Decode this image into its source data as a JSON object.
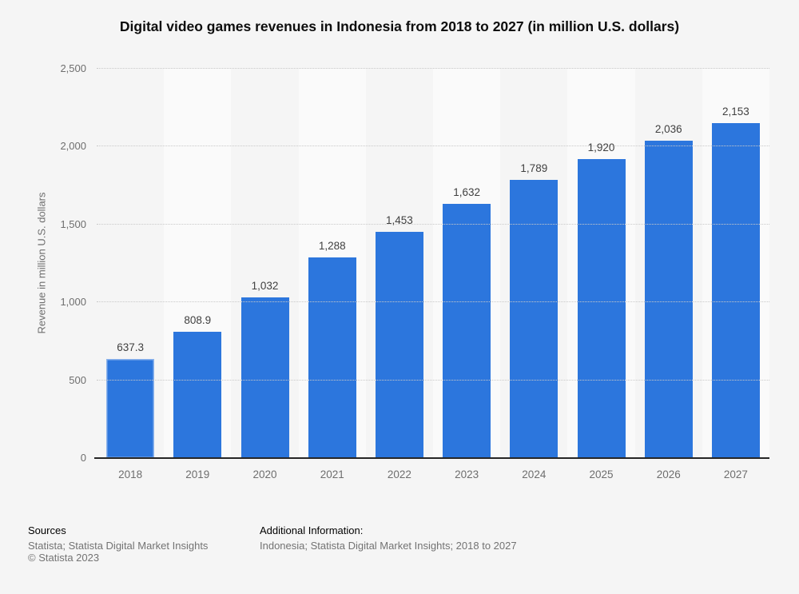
{
  "title": "Digital video games revenues in Indonesia from 2018 to 2027 (in million U.S. dollars)",
  "chart_data": {
    "type": "bar",
    "title": "Digital video games revenues in Indonesia from 2018 to 2027 (in million U.S. dollars)",
    "categories": [
      "2018",
      "2019",
      "2020",
      "2021",
      "2022",
      "2023",
      "2024",
      "2025",
      "2026",
      "2027"
    ],
    "values": [
      637.3,
      808.9,
      1032,
      1288,
      1453,
      1632,
      1789,
      1920,
      2036,
      2153
    ],
    "value_labels": [
      "637.3",
      "808.9",
      "1,032",
      "1,288",
      "1,453",
      "1,632",
      "1,789",
      "1,920",
      "2,036",
      "2,153"
    ],
    "xlabel": "",
    "ylabel": "Revenue in million U.S. dollars",
    "ylim": [
      0,
      2500
    ],
    "yticks": [
      0,
      500,
      1000,
      1500,
      2000,
      2500
    ],
    "ytick_labels": [
      "0",
      "500",
      "1,000",
      "1,500",
      "2,000",
      "2,500"
    ],
    "grid": "horizontal-dotted",
    "legend": "none",
    "bar_color": "#2c76dd",
    "highlighted_bar_index": 0
  },
  "colors": {
    "page_background": "#f5f5f5",
    "alt_column_band": "#fafafa",
    "gridline": "#c9c9c9",
    "axis_line": "#262626",
    "bar": "#2c76dd",
    "value_label": "#404040",
    "tick_label": "#6e6e6e",
    "footer_gray": "#737373"
  },
  "footer": {
    "sources_label": "Sources",
    "sources_line": "Statista; Statista Digital Market Insights",
    "copyright": "© Statista 2023",
    "additional_info_label": "Additional Information:",
    "additional_info_line": "Indonesia; Statista Digital Market Insights; 2018 to 2027"
  }
}
